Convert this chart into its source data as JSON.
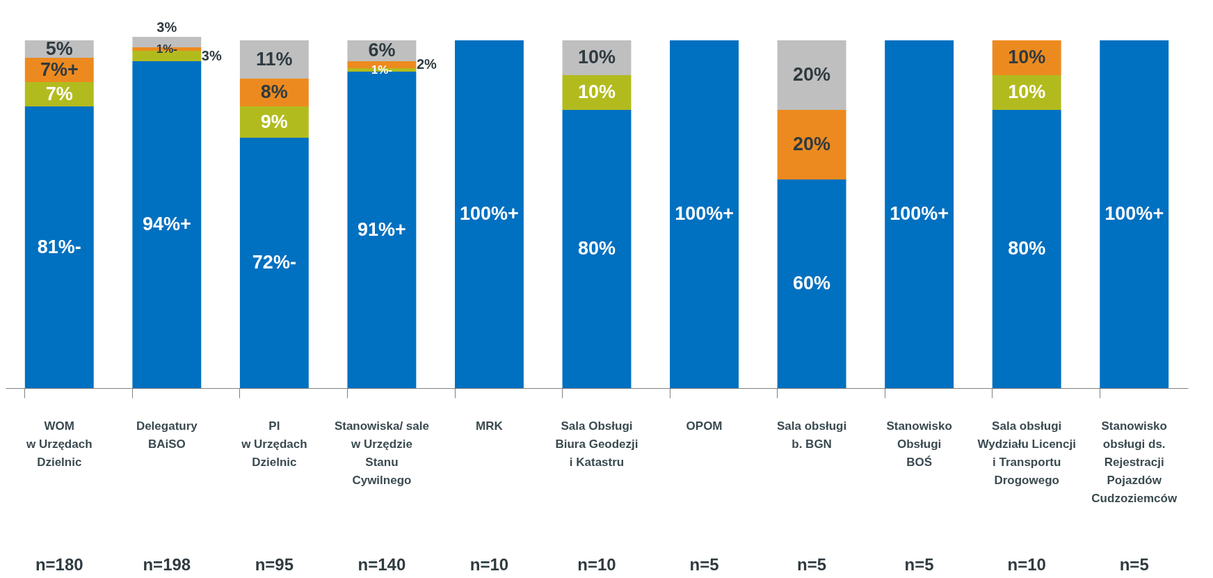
{
  "chart_data": {
    "type": "bar",
    "stacked": true,
    "categories": [
      "WOM\nw Urzędach\nDzielnic",
      "Delegatury\nBAiSO",
      "PI\nw Urzędach\nDzielnic",
      "Stanowiska/ sale\nw Urzędzie\nStanu\nCywilnego",
      "MRK",
      "Sala Obsługi\nBiura Geodezji\ni Katastru",
      "OPOM",
      "Sala obsługi\nb. BGN",
      "Stanowisko\nObsługi\nBOŚ",
      "Sala obsługi\nWydziału Licencji\ni Transportu\nDrogowego",
      "Stanowisko\nobsługi ds.\nRejestracji\nPojazdów\nCudzoziemców"
    ],
    "series": [
      {
        "color": "#0070c0",
        "values": [
          81,
          94,
          72,
          91,
          100,
          80,
          100,
          60,
          100,
          80,
          100
        ],
        "value_labels": [
          "81%-",
          "94%+",
          "72%-",
          "91%+",
          "100%+",
          "80%",
          "100%+",
          "60%",
          "100%+",
          "80%",
          "100%+"
        ]
      },
      {
        "color": "#b2bb1e",
        "values": [
          7,
          3,
          9,
          1,
          0,
          10,
          0,
          0,
          0,
          10,
          0
        ],
        "value_labels": [
          "7%",
          "3%",
          "9%",
          "1%-",
          null,
          "10%",
          null,
          null,
          null,
          "10%",
          null
        ]
      },
      {
        "color": "#ed8a1f",
        "values": [
          7,
          1,
          8,
          2,
          0,
          0,
          0,
          20,
          0,
          10,
          0
        ],
        "value_labels": [
          "7%+",
          "1%-",
          "8%",
          "2%",
          null,
          null,
          null,
          "20%",
          null,
          "10%",
          null
        ]
      },
      {
        "color": "#bfbfbf",
        "values": [
          5,
          3,
          11,
          6,
          0,
          10,
          0,
          20,
          0,
          0,
          0
        ],
        "value_labels": [
          "5%",
          "3%",
          "11%",
          "6%",
          null,
          "10%",
          null,
          "20%",
          null,
          null,
          null
        ]
      }
    ],
    "annotations": [
      "n=180",
      "n=198",
      "n=95",
      "n=140",
      "n=10",
      "n=10",
      "n=5",
      "n=5",
      "n=5",
      "n=10",
      "n=5"
    ],
    "grid": false,
    "legend": false
  }
}
